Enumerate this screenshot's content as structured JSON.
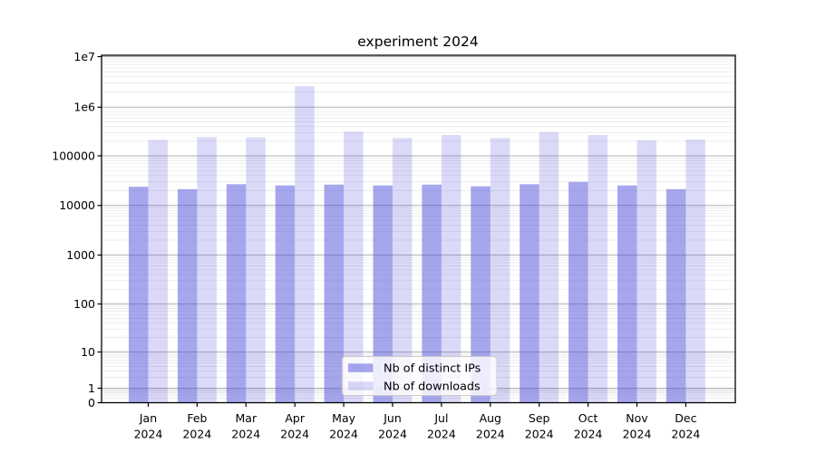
{
  "chart_data": {
    "type": "bar",
    "title": "experiment 2024",
    "categories": [
      "Jan 2024",
      "Feb 2024",
      "Mar 2024",
      "Apr 2024",
      "May 2024",
      "Jun 2024",
      "Jul 2024",
      "Aug 2024",
      "Sep 2024",
      "Oct 2024",
      "Nov 2024",
      "Dec 2024"
    ],
    "series": [
      {
        "name": "Nb of distinct IPs",
        "color": "rgba(85,85,221,0.52)",
        "values": [
          23500,
          21000,
          26500,
          25000,
          26000,
          25000,
          26000,
          24000,
          26500,
          29500,
          25000,
          21000
        ]
      },
      {
        "name": "Nb of downloads",
        "color": "rgba(85,85,221,0.22)",
        "values": [
          210000,
          240000,
          238000,
          2600000,
          310000,
          230000,
          265000,
          230000,
          305000,
          265000,
          207000,
          215000
        ]
      }
    ],
    "yscale": "symlog",
    "ylim": [
      0,
      10000000
    ],
    "ytick_labels": [
      "0",
      "1",
      "10",
      "100",
      "1000",
      "10000",
      "100000",
      "1e6",
      "1e7"
    ],
    "xlabel": "",
    "ylabel": "",
    "grid": {
      "major": true,
      "minor": true
    },
    "legend": {
      "position": "lower center",
      "labels": [
        "Nb of distinct IPs",
        "Nb of downloads"
      ]
    },
    "colors": {
      "grid_major": "#b2b2b2",
      "grid_minor": "#e9e9e9",
      "axis": "#000000",
      "background": "#ffffff"
    }
  }
}
